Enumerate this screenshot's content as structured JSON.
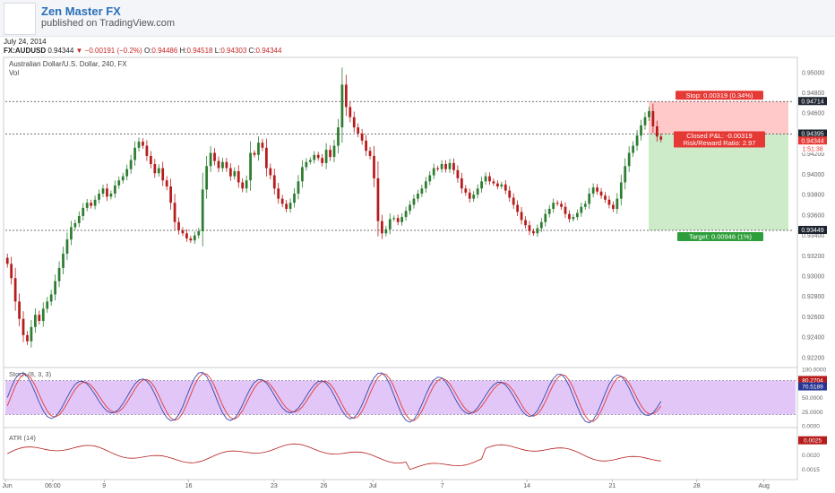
{
  "header": {
    "author": "Zen Master FX",
    "published": "published on TradingView.com"
  },
  "meta": {
    "date": "July 24, 2014",
    "symbol": "FX:AUDUSD",
    "last": "0.94344",
    "change": "−0.00191 (−0.2%)",
    "o_label": "O:",
    "o": "0.94486",
    "h_label": "H:",
    "h": "0.94518",
    "l_label": "L:",
    "l": "0.94303",
    "c_label": "C:",
    "c": "0.94344"
  },
  "colors": {
    "up": "#2e7d32",
    "down": "#b71c1c",
    "stoch_k": "#3949ab",
    "stoch_d": "#e53935",
    "stoch_band": "#e2c6f7",
    "atr": "#b71c1c",
    "stop_zone": "#ffc9c9",
    "target_zone": "#cdebc9",
    "label_red": "#e53935",
    "label_green": "#2e9e3a"
  },
  "chart_data": {
    "type": "candlestick",
    "title": "Australian Dollar/U.S. Dollar, 240, FX",
    "sub_label": "Vol",
    "y_ticks": [
      "0.95000",
      "0.94800",
      "0.94600",
      "0.94400",
      "0.94200",
      "0.94000",
      "0.93800",
      "0.93600",
      "0.93400",
      "0.93200",
      "0.93000",
      "0.92800",
      "0.92600",
      "0.92400",
      "0.92200"
    ],
    "ylim": [
      0.9212,
      0.9513
    ],
    "x_ticks": [
      {
        "label": "Jun",
        "pos": 0.0
      },
      {
        "label": "06:00",
        "pos": 0.06
      },
      {
        "label": "9",
        "pos": 0.125
      },
      {
        "label": "16",
        "pos": 0.232
      },
      {
        "label": "23",
        "pos": 0.34
      },
      {
        "label": "26",
        "pos": 0.403
      },
      {
        "label": "Jul",
        "pos": 0.465
      },
      {
        "label": "7",
        "pos": 0.553
      },
      {
        "label": "14",
        "pos": 0.66
      },
      {
        "label": "21",
        "pos": 0.768
      },
      {
        "label": "28",
        "pos": 0.875
      },
      {
        "label": "Aug",
        "pos": 0.96
      }
    ],
    "candles_close": [
      0.9312,
      0.9298,
      0.9275,
      0.9258,
      0.9242,
      0.9236,
      0.925,
      0.9262,
      0.9256,
      0.9268,
      0.9275,
      0.9282,
      0.9295,
      0.9308,
      0.9322,
      0.9336,
      0.9348,
      0.9352,
      0.9359,
      0.9367,
      0.9372,
      0.9369,
      0.9375,
      0.9381,
      0.9386,
      0.9378,
      0.9381,
      0.9389,
      0.9394,
      0.9398,
      0.9405,
      0.9414,
      0.9426,
      0.9432,
      0.9428,
      0.9418,
      0.941,
      0.9401,
      0.9406,
      0.9394,
      0.9388,
      0.9372,
      0.9353,
      0.9345,
      0.9342,
      0.9337,
      0.9335,
      0.934,
      0.9344,
      0.9385,
      0.9408,
      0.9421,
      0.9413,
      0.9406,
      0.9412,
      0.9406,
      0.9398,
      0.9403,
      0.9392,
      0.9386,
      0.9394,
      0.9421,
      0.9419,
      0.9431,
      0.9426,
      0.9406,
      0.9399,
      0.9386,
      0.9376,
      0.9371,
      0.9366,
      0.9372,
      0.9381,
      0.9393,
      0.9407,
      0.9412,
      0.9414,
      0.9419,
      0.9416,
      0.9411,
      0.9424,
      0.9417,
      0.9428,
      0.9446,
      0.9488,
      0.9466,
      0.9456,
      0.9446,
      0.944,
      0.9433,
      0.9423,
      0.9418,
      0.9396,
      0.9354,
      0.9342,
      0.9346,
      0.9356,
      0.9357,
      0.9353,
      0.9358,
      0.9364,
      0.937,
      0.9376,
      0.9381,
      0.9386,
      0.9393,
      0.9399,
      0.9406,
      0.9405,
      0.941,
      0.9405,
      0.9411,
      0.9404,
      0.9396,
      0.9386,
      0.9382,
      0.9376,
      0.938,
      0.9386,
      0.9393,
      0.9398,
      0.9393,
      0.9391,
      0.9388,
      0.939,
      0.9384,
      0.9377,
      0.937,
      0.9363,
      0.9355,
      0.935,
      0.9344,
      0.9342,
      0.9347,
      0.9353,
      0.9361,
      0.9366,
      0.9372,
      0.9371,
      0.9368,
      0.9361,
      0.9356,
      0.9358,
      0.9362,
      0.9368,
      0.9371,
      0.9381,
      0.9387,
      0.9383,
      0.9379,
      0.9375,
      0.937,
      0.9366,
      0.9376,
      0.9392,
      0.9408,
      0.9421,
      0.9428,
      0.9438,
      0.9448,
      0.9456,
      0.9462,
      0.9447,
      0.9437,
      0.9434
    ],
    "position": {
      "entry": 0.94395,
      "stop": 0.94714,
      "target": 0.93449,
      "stop_label": "Stop: 0.00319 (0.34%)",
      "target_label": "Target: 0.00946 (1%)",
      "pl_label": "Closed P&L: -0.00319",
      "rr_label": "Risk/Reward Ratio: 2.97"
    },
    "price_tags": [
      {
        "value": "0.94714",
        "style": "dark"
      },
      {
        "value": "0.94395",
        "style": "dark"
      },
      {
        "value": "0.94344",
        "style": "red"
      },
      {
        "value": "1:51:38",
        "style": "redtext"
      },
      {
        "value": "0.93449",
        "style": "dark"
      }
    ],
    "stoch": {
      "name": "Stoch (8, 3, 3)",
      "y_ticks": [
        "100.0000",
        "75.0000",
        "50.0000",
        "25.0000",
        "0.0000"
      ],
      "ylim": [
        0,
        100
      ],
      "band": [
        20,
        80
      ],
      "k_value": "70.5189",
      "d_value": "80.2704"
    },
    "atr": {
      "name": "ATR (14)",
      "y_ticks": [
        "0.0020",
        "0.0015"
      ],
      "ylim": [
        0.0012,
        0.0029
      ],
      "value": "0.0025"
    }
  }
}
